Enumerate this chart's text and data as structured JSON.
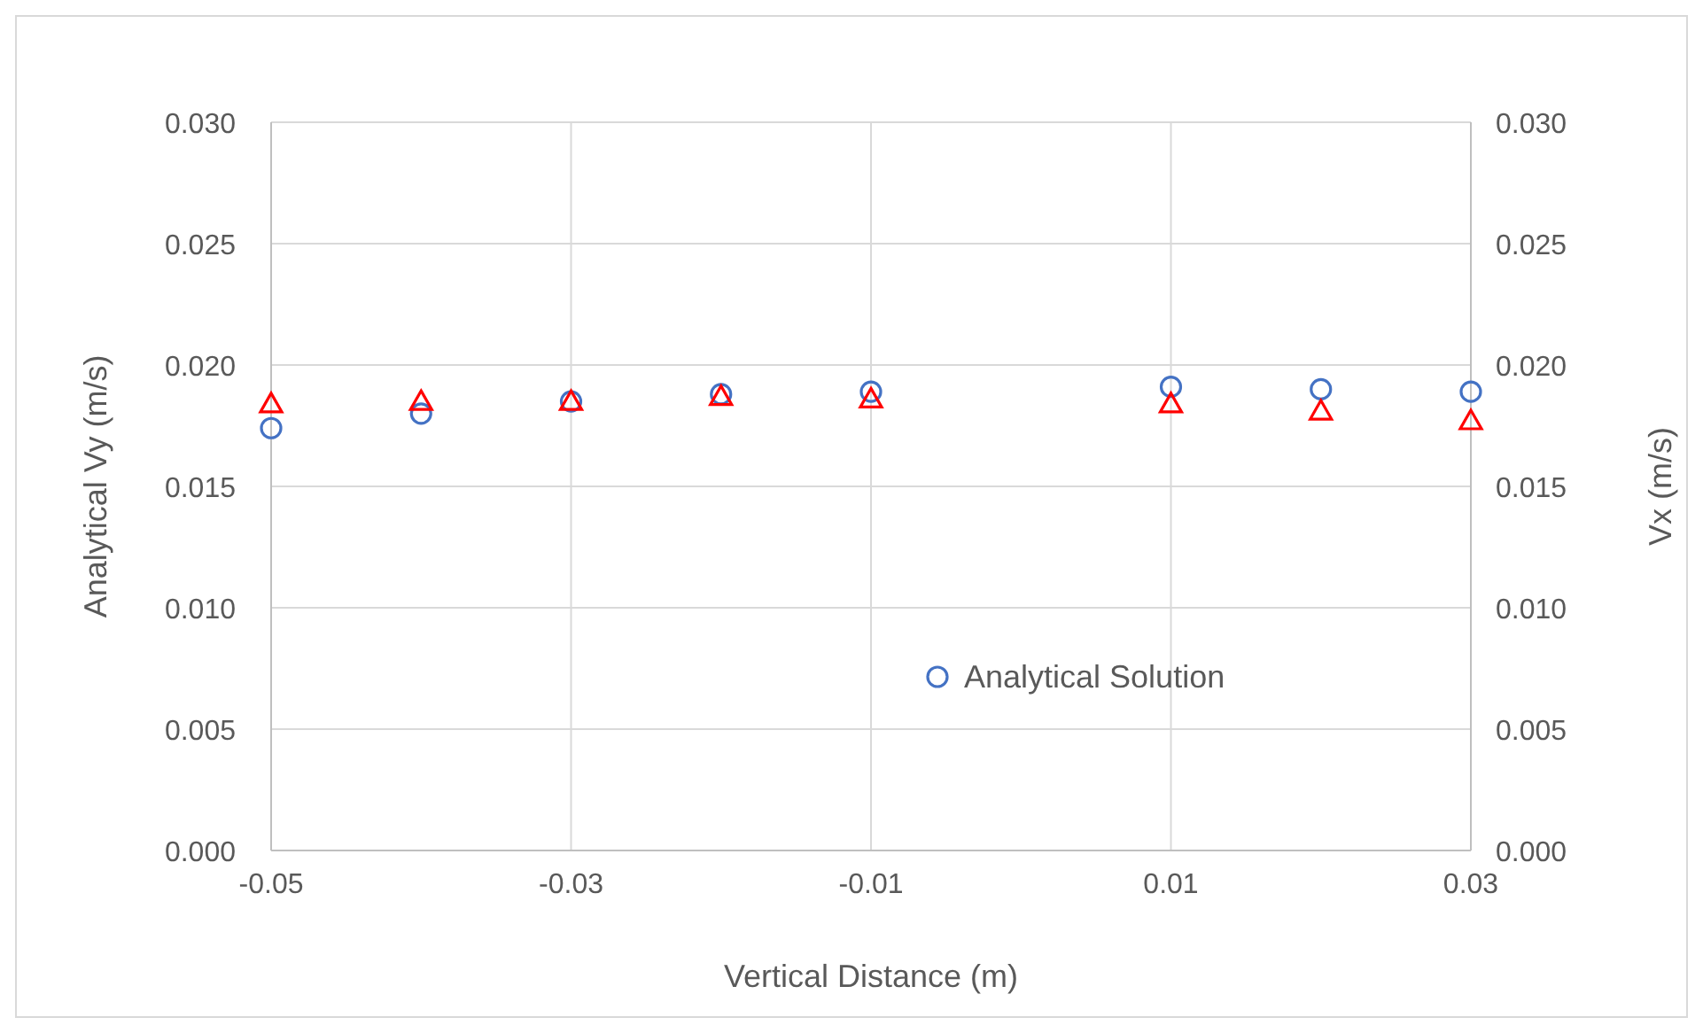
{
  "chart_data": {
    "type": "scatter",
    "xlabel": "Vertical Distance (m)",
    "ylabel": "Analytical Vy (m/s)",
    "y2label": "Vx (m/s)",
    "x": [
      -0.05,
      -0.04,
      -0.03,
      -0.02,
      -0.01,
      0.01,
      0.02,
      0.03
    ],
    "series": [
      {
        "name": "Analytical Solution",
        "color": "#4472c4",
        "marker": "circle",
        "values": [
          0.0174,
          0.018,
          0.0185,
          0.0188,
          0.0189,
          0.0191,
          0.019,
          0.0189
        ]
      },
      {
        "color": "#ff0000",
        "marker": "triangle",
        "values": [
          0.0184,
          0.0185,
          0.0185,
          0.0187,
          0.0186,
          0.0184,
          0.0181,
          0.0177
        ]
      }
    ],
    "xlim": [
      -0.05,
      0.03
    ],
    "xticks": [
      -0.05,
      -0.03,
      -0.01,
      0.01,
      0.03
    ],
    "ylim": [
      0,
      0.03
    ],
    "yticks": [
      {
        "value": 0,
        "label": "0.000"
      },
      {
        "value": 0.005,
        "label": "0.005"
      },
      {
        "value": 0.01,
        "label": "0.010"
      },
      {
        "value": 0.015,
        "label": "0.015"
      },
      {
        "value": 0.02,
        "label": "0.020"
      },
      {
        "value": 0.025,
        "label": "0.025"
      },
      {
        "value": 0.03,
        "label": "0.030"
      }
    ],
    "y2lim": [
      0,
      0.03
    ],
    "y2ticks": [
      {
        "value": 0,
        "label": "0.000"
      },
      {
        "value": 0.005,
        "label": "0.005"
      },
      {
        "value": 0.01,
        "label": "0.010"
      },
      {
        "value": 0.015,
        "label": "0.015"
      },
      {
        "value": 0.02,
        "label": "0.020"
      },
      {
        "value": 0.025,
        "label": "0.025"
      },
      {
        "value": 0.03,
        "label": "0.030"
      }
    ],
    "grid": true,
    "legend": "bottom right"
  }
}
